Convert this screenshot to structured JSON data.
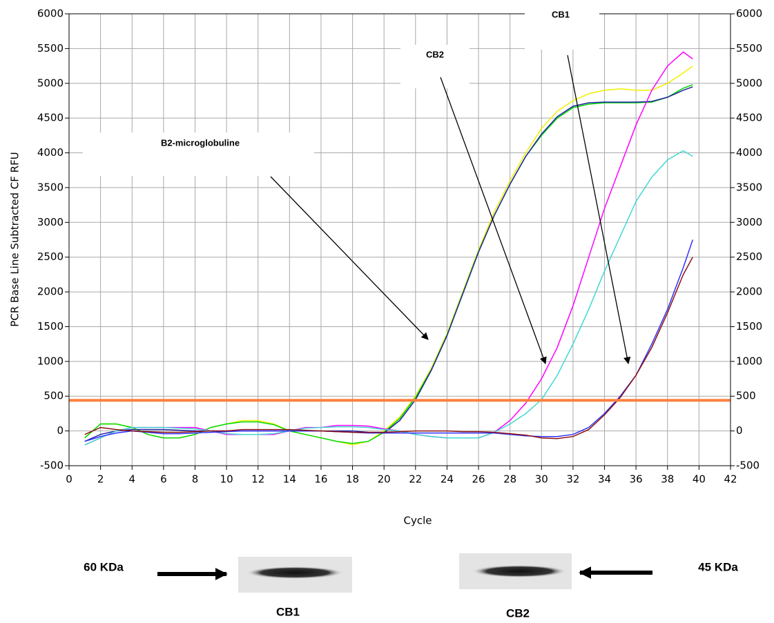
{
  "chart_data": {
    "type": "line",
    "ylabel": "PCR Base Line Subtracted CF RFU",
    "xlabel": "Cycle",
    "xlim": [
      0,
      42
    ],
    "xticks": [
      0,
      2,
      4,
      6,
      8,
      10,
      12,
      14,
      16,
      18,
      20,
      22,
      24,
      26,
      28,
      30,
      32,
      34,
      36,
      38,
      40,
      42
    ],
    "ylim": [
      -500,
      6000
    ],
    "yticks": [
      -500,
      0,
      500,
      1000,
      1500,
      2000,
      2500,
      3000,
      3500,
      4000,
      4500,
      5000,
      5500,
      6000
    ],
    "grid": true,
    "threshold": 440,
    "threshold_color": "#ff8040",
    "x": [
      1,
      2,
      3,
      4,
      5,
      6,
      7,
      8,
      9,
      10,
      11,
      12,
      13,
      14,
      15,
      16,
      17,
      18,
      19,
      20,
      21,
      22,
      23,
      24,
      25,
      26,
      27,
      28,
      29,
      30,
      31,
      32,
      33,
      34,
      35,
      36,
      37,
      38,
      39,
      39.6
    ],
    "series": [
      {
        "color": "#f0f000",
        "values": [
          -100,
          100,
          100,
          50,
          -50,
          -100,
          -100,
          -50,
          50,
          100,
          150,
          150,
          100,
          0,
          -50,
          -100,
          -150,
          -200,
          -150,
          0,
          200,
          500,
          900,
          1400,
          2000,
          2600,
          3150,
          3600,
          4000,
          4350,
          4600,
          4750,
          4850,
          4900,
          4920,
          4900,
          4900,
          5000,
          5150,
          5250
        ]
      },
      {
        "color": "#00d800",
        "values": [
          -100,
          100,
          100,
          50,
          -50,
          -100,
          -100,
          -50,
          50,
          100,
          130,
          130,
          90,
          0,
          -50,
          -100,
          -150,
          -180,
          -150,
          -20,
          180,
          480,
          880,
          1380,
          1980,
          2580,
          3100,
          3550,
          3950,
          4250,
          4500,
          4650,
          4700,
          4720,
          4720,
          4720,
          4730,
          4800,
          4930,
          4980
        ]
      },
      {
        "color": "#2020a0",
        "values": [
          -150,
          -50,
          0,
          20,
          20,
          20,
          10,
          0,
          0,
          0,
          0,
          0,
          0,
          0,
          0,
          0,
          0,
          0,
          -20,
          -30,
          150,
          450,
          870,
          1370,
          1970,
          2570,
          3100,
          3550,
          3950,
          4270,
          4520,
          4670,
          4720,
          4730,
          4730,
          4730,
          4740,
          4800,
          4900,
          4950
        ]
      },
      {
        "color": "#ff00ff",
        "values": [
          -200,
          -100,
          0,
          50,
          50,
          50,
          50,
          50,
          0,
          -50,
          -50,
          -50,
          -50,
          0,
          50,
          50,
          80,
          80,
          70,
          30,
          0,
          -50,
          -80,
          -100,
          -100,
          -100,
          -20,
          150,
          400,
          750,
          1200,
          1800,
          2500,
          3200,
          3800,
          4400,
          4900,
          5250,
          5450,
          5350
        ]
      },
      {
        "color": "#40d8d0",
        "values": [
          -200,
          -100,
          0,
          50,
          50,
          50,
          40,
          30,
          0,
          -40,
          -50,
          -50,
          -40,
          0,
          40,
          50,
          60,
          60,
          50,
          20,
          0,
          -50,
          -80,
          -100,
          -100,
          -100,
          -20,
          100,
          250,
          450,
          800,
          1250,
          1750,
          2300,
          2800,
          3300,
          3650,
          3900,
          4030,
          3950
        ]
      },
      {
        "color": "#3030ff",
        "values": [
          -150,
          -80,
          -30,
          0,
          -20,
          -40,
          -40,
          -30,
          -20,
          -10,
          0,
          0,
          0,
          0,
          0,
          0,
          -10,
          -20,
          -30,
          -30,
          -30,
          -30,
          -30,
          -30,
          -30,
          -30,
          -30,
          -50,
          -70,
          -80,
          -80,
          -50,
          50,
          250,
          500,
          800,
          1250,
          1750,
          2350,
          2750
        ]
      },
      {
        "color": "#8b1010",
        "values": [
          -50,
          50,
          20,
          0,
          -10,
          -20,
          -20,
          -10,
          0,
          0,
          20,
          20,
          20,
          20,
          10,
          0,
          -10,
          -20,
          -20,
          -20,
          -10,
          0,
          0,
          0,
          -10,
          -10,
          -20,
          -40,
          -60,
          -100,
          -110,
          -80,
          20,
          230,
          480,
          800,
          1200,
          1700,
          2250,
          2500
        ]
      }
    ],
    "annotations": [
      "B2-microglobuline",
      "CB2",
      "CB1"
    ],
    "blots": [
      {
        "size": "60 KDa",
        "label": "CB1"
      },
      {
        "size": "45 KDa",
        "label": "CB2"
      }
    ]
  }
}
